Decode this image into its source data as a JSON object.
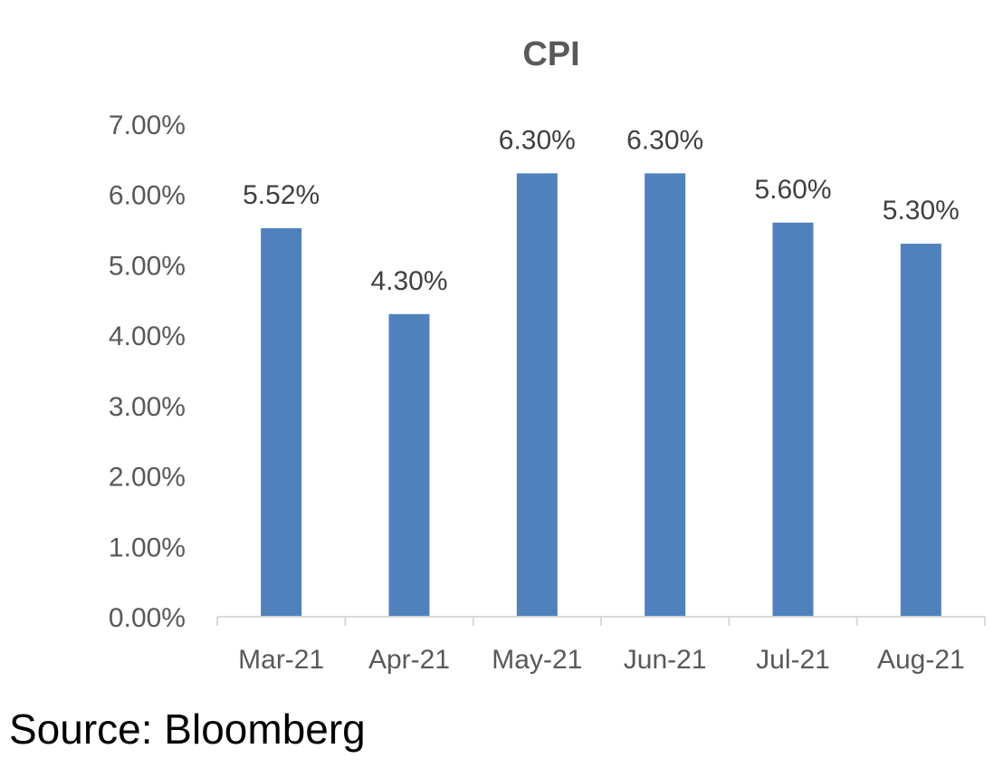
{
  "source_note": "Source: Bloomberg",
  "chart_data": {
    "type": "bar",
    "title": "CPI",
    "xlabel": "",
    "ylabel": "",
    "categories": [
      "Mar-21",
      "Apr-21",
      "May-21",
      "Jun-21",
      "Jul-21",
      "Aug-21"
    ],
    "values": [
      5.52,
      4.3,
      6.3,
      6.3,
      5.6,
      5.3
    ],
    "data_labels": [
      "5.52%",
      "4.30%",
      "6.30%",
      "6.30%",
      "5.60%",
      "5.30%"
    ],
    "ylim": [
      0,
      7
    ],
    "yticks": [
      0,
      1,
      2,
      3,
      4,
      5,
      6,
      7
    ],
    "ytick_labels": [
      "0.00%",
      "1.00%",
      "2.00%",
      "3.00%",
      "4.00%",
      "5.00%",
      "6.00%",
      "7.00%"
    ],
    "grid": false,
    "legend": "none",
    "bar_color": "#4F81BD",
    "axis_color": "#D9D9D9"
  }
}
